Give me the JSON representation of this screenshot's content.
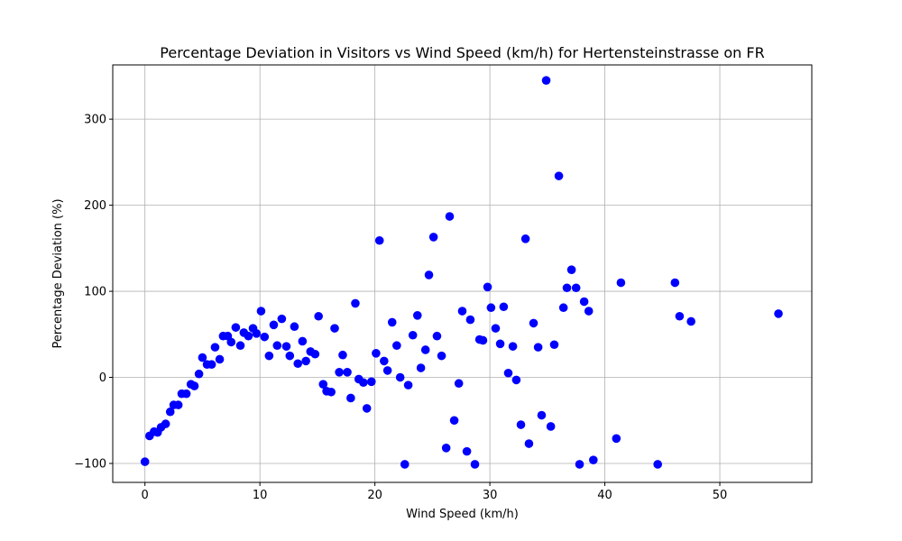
{
  "chart_data": {
    "type": "scatter",
    "title": "Percentage Deviation in Visitors vs Wind Speed (km/h) for Hertensteinstrasse on FR",
    "xlabel": "Wind Speed (km/h)",
    "ylabel": "Percentage Deviation (%)",
    "xlim": [
      -2.8,
      58.0
    ],
    "ylim": [
      -122,
      363
    ],
    "xticks": [
      0,
      10,
      20,
      30,
      40,
      50
    ],
    "yticks": [
      -100,
      0,
      100,
      200,
      300
    ],
    "grid": true,
    "color": "#0000ff",
    "points": [
      [
        0.0,
        -98
      ],
      [
        0.4,
        -68
      ],
      [
        0.8,
        -63
      ],
      [
        1.1,
        -64
      ],
      [
        1.4,
        -58
      ],
      [
        1.8,
        -54
      ],
      [
        2.2,
        -40
      ],
      [
        2.5,
        -32
      ],
      [
        2.9,
        -32
      ],
      [
        3.2,
        -19
      ],
      [
        3.6,
        -19
      ],
      [
        4.0,
        -8
      ],
      [
        4.3,
        -10
      ],
      [
        4.7,
        4
      ],
      [
        5.0,
        23
      ],
      [
        5.4,
        15
      ],
      [
        5.8,
        15
      ],
      [
        6.1,
        35
      ],
      [
        6.5,
        21
      ],
      [
        6.8,
        48
      ],
      [
        7.2,
        48
      ],
      [
        7.5,
        41
      ],
      [
        7.9,
        58
      ],
      [
        8.3,
        37
      ],
      [
        8.6,
        52
      ],
      [
        9.0,
        48
      ],
      [
        9.4,
        57
      ],
      [
        9.7,
        51
      ],
      [
        10.1,
        77
      ],
      [
        10.4,
        47
      ],
      [
        10.8,
        25
      ],
      [
        11.2,
        61
      ],
      [
        11.5,
        37
      ],
      [
        11.9,
        68
      ],
      [
        12.3,
        36
      ],
      [
        12.6,
        25
      ],
      [
        13.0,
        59
      ],
      [
        13.3,
        16
      ],
      [
        13.7,
        42
      ],
      [
        14.0,
        19
      ],
      [
        14.4,
        30
      ],
      [
        14.8,
        27
      ],
      [
        15.1,
        71
      ],
      [
        15.5,
        -8
      ],
      [
        15.8,
        -16
      ],
      [
        16.2,
        -17
      ],
      [
        16.5,
        57
      ],
      [
        16.9,
        6
      ],
      [
        17.2,
        26
      ],
      [
        17.6,
        6
      ],
      [
        17.9,
        -24
      ],
      [
        18.3,
        86
      ],
      [
        18.6,
        -2
      ],
      [
        19.0,
        -6
      ],
      [
        19.3,
        -36
      ],
      [
        19.7,
        -5
      ],
      [
        20.1,
        28
      ],
      [
        20.4,
        159
      ],
      [
        20.8,
        19
      ],
      [
        21.1,
        8
      ],
      [
        21.5,
        64
      ],
      [
        21.9,
        37
      ],
      [
        22.2,
        0
      ],
      [
        22.6,
        -101
      ],
      [
        22.9,
        -9
      ],
      [
        23.3,
        49
      ],
      [
        23.7,
        72
      ],
      [
        24.0,
        11
      ],
      [
        24.4,
        32
      ],
      [
        24.7,
        119
      ],
      [
        25.1,
        163
      ],
      [
        25.4,
        48
      ],
      [
        25.8,
        25
      ],
      [
        26.2,
        -82
      ],
      [
        26.5,
        187
      ],
      [
        26.9,
        -50
      ],
      [
        27.3,
        -7
      ],
      [
        27.6,
        77
      ],
      [
        28.0,
        -86
      ],
      [
        28.3,
        67
      ],
      [
        28.7,
        -101
      ],
      [
        29.1,
        44
      ],
      [
        29.4,
        43
      ],
      [
        29.8,
        105
      ],
      [
        30.1,
        81
      ],
      [
        30.5,
        57
      ],
      [
        30.9,
        39
      ],
      [
        31.2,
        82
      ],
      [
        31.6,
        5
      ],
      [
        32.0,
        36
      ],
      [
        32.3,
        -3
      ],
      [
        32.7,
        -55
      ],
      [
        33.1,
        161
      ],
      [
        33.4,
        -77
      ],
      [
        33.8,
        63
      ],
      [
        34.2,
        35
      ],
      [
        34.5,
        -44
      ],
      [
        34.9,
        345
      ],
      [
        35.3,
        -57
      ],
      [
        35.6,
        38
      ],
      [
        36.0,
        234
      ],
      [
        36.4,
        81
      ],
      [
        36.7,
        104
      ],
      [
        37.1,
        125
      ],
      [
        37.5,
        104
      ],
      [
        37.8,
        -101
      ],
      [
        38.2,
        88
      ],
      [
        38.6,
        77
      ],
      [
        39.0,
        -96
      ],
      [
        41.0,
        -71
      ],
      [
        41.4,
        110
      ],
      [
        44.6,
        -101
      ],
      [
        46.1,
        110
      ],
      [
        46.5,
        71
      ],
      [
        47.5,
        65
      ],
      [
        55.1,
        74
      ]
    ]
  }
}
